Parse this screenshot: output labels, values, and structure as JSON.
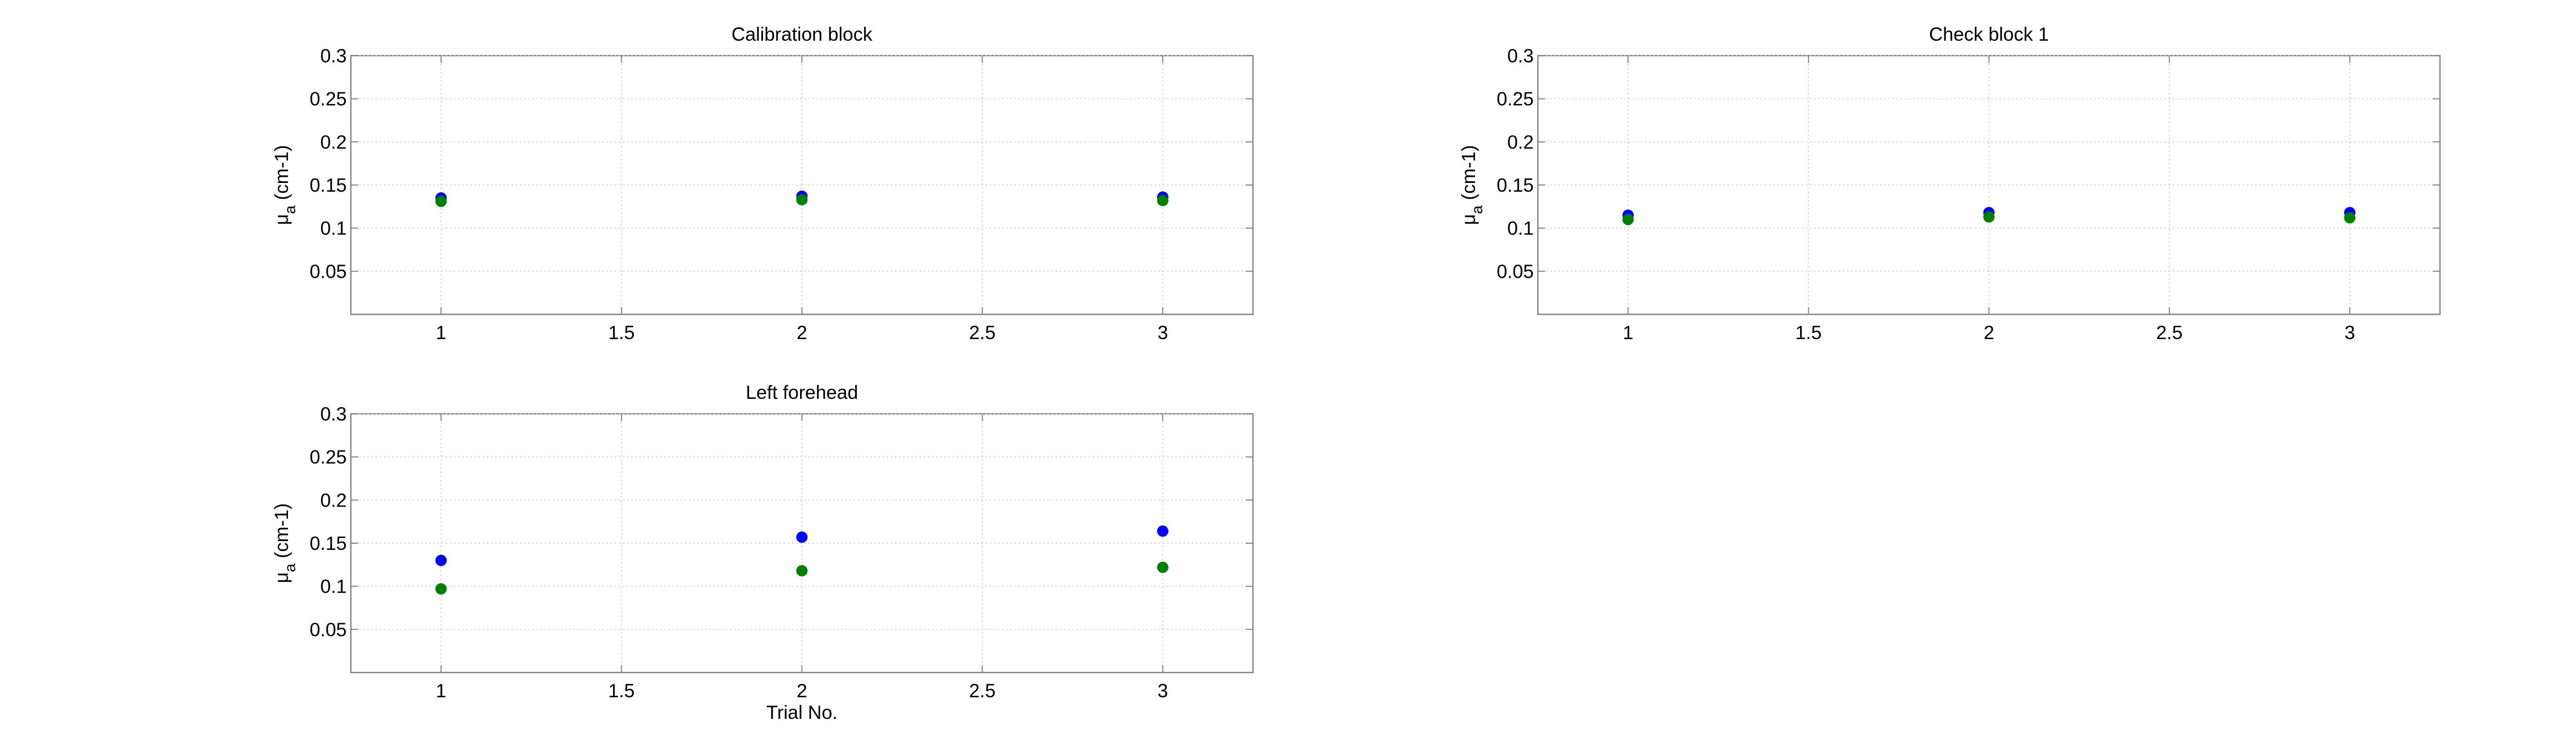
{
  "chart_data": [
    {
      "type": "scatter",
      "title": "Calibration block",
      "xlabel": "",
      "ylabel": "μa (cm-1)",
      "xlim": [
        0.75,
        3.25
      ],
      "ylim": [
        0,
        0.3
      ],
      "xticks": [
        "1",
        "1.5",
        "2",
        "2.5",
        "3"
      ],
      "yticks": [
        "0.05",
        "0.1",
        "0.15",
        "0.2",
        "0.25",
        "0.3"
      ],
      "grid": true,
      "series": [
        {
          "color": "#0000ff",
          "x": [
            1,
            2,
            3
          ],
          "y": [
            0.135,
            0.137,
            0.136
          ]
        },
        {
          "color": "#008000",
          "x": [
            1,
            2,
            3
          ],
          "y": [
            0.131,
            0.133,
            0.132
          ]
        }
      ]
    },
    {
      "type": "scatter",
      "title": "Check block 1",
      "xlabel": "",
      "ylabel": "μa (cm-1)",
      "xlim": [
        0.75,
        3.25
      ],
      "ylim": [
        0,
        0.3
      ],
      "xticks": [
        "1",
        "1.5",
        "2",
        "2.5",
        "3"
      ],
      "yticks": [
        "0.05",
        "0.1",
        "0.15",
        "0.2",
        "0.25",
        "0.3"
      ],
      "grid": true,
      "series": [
        {
          "color": "#0000ff",
          "x": [
            1,
            2,
            3
          ],
          "y": [
            0.115,
            0.118,
            0.118
          ]
        },
        {
          "color": "#008000",
          "x": [
            1,
            2,
            3
          ],
          "y": [
            0.11,
            0.113,
            0.112
          ]
        }
      ]
    },
    {
      "type": "scatter",
      "title": "Left forehead",
      "xlabel": "Trial No.",
      "ylabel": "μa (cm-1)",
      "xlim": [
        0.75,
        3.25
      ],
      "ylim": [
        0,
        0.3
      ],
      "xticks": [
        "1",
        "1.5",
        "2",
        "2.5",
        "3"
      ],
      "yticks": [
        "0.05",
        "0.1",
        "0.15",
        "0.2",
        "0.25",
        "0.3"
      ],
      "grid": true,
      "series": [
        {
          "color": "#0000ff",
          "x": [
            1,
            2,
            3
          ],
          "y": [
            0.13,
            0.157,
            0.164
          ]
        },
        {
          "color": "#008000",
          "x": [
            1,
            2,
            3
          ],
          "y": [
            0.097,
            0.118,
            0.122
          ]
        }
      ]
    }
  ]
}
